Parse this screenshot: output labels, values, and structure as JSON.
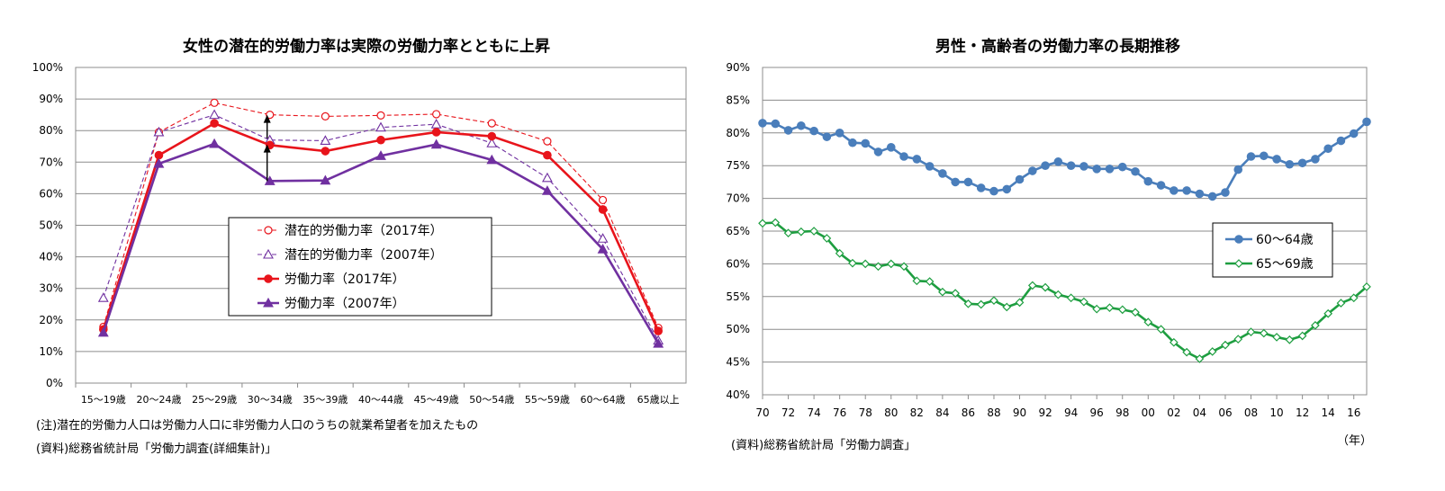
{
  "chart_data": [
    {
      "type": "line",
      "title": "女性の潜在的労働力率は実際の労働力率とともに上昇",
      "categories": [
        "15〜19歳",
        "20〜24歳",
        "25〜29歳",
        "30〜34歳",
        "35〜39歳",
        "40〜44歳",
        "45〜49歳",
        "50〜54歳",
        "55〜59歳",
        "60〜64歳",
        "65歳以上"
      ],
      "y_ticks": [
        "0%",
        "10%",
        "20%",
        "30%",
        "40%",
        "50%",
        "60%",
        "70%",
        "80%",
        "90%",
        "100%"
      ],
      "ylim": [
        0,
        100
      ],
      "grid": true,
      "legend_position": "center",
      "series": [
        {
          "name": "潜在的労働力率（2017年）",
          "color": "#e8141b",
          "style": "dashed-circle",
          "values": [
            17.8,
            79.5,
            88.8,
            85.0,
            84.5,
            84.8,
            85.2,
            82.3,
            76.6,
            58.0,
            17.5
          ]
        },
        {
          "name": "潜在的労働力率（2007年）",
          "color": "#7030a0",
          "style": "dashed-triangle",
          "values": [
            27.0,
            79.5,
            85.0,
            77.0,
            76.8,
            81.0,
            82.0,
            76.0,
            65.0,
            45.8,
            13.5
          ]
        },
        {
          "name": "労働力率（2017年）",
          "color": "#e8141b",
          "style": "solid-circle",
          "values": [
            17.0,
            72.2,
            82.3,
            75.4,
            73.5,
            77.0,
            79.5,
            78.2,
            72.2,
            55.0,
            16.5
          ]
        },
        {
          "name": "労働力率（2007年）",
          "color": "#7030a0",
          "style": "solid-triangle",
          "values": [
            16.0,
            69.5,
            75.8,
            64.0,
            64.2,
            72.0,
            75.6,
            70.7,
            60.9,
            42.4,
            12.5
          ]
        }
      ],
      "annotations": [
        "(注)潜在的労働力人口は労働力人口に非労働力人口のうちの就業希望者を加えたもの",
        "(資料)総務省統計局「労働力調査(詳細集計)」"
      ]
    },
    {
      "type": "line",
      "title": "男性・高齢者の労働力率の長期推移",
      "x_ticks": [
        "70",
        "72",
        "74",
        "76",
        "78",
        "80",
        "82",
        "84",
        "86",
        "88",
        "90",
        "92",
        "94",
        "96",
        "98",
        "00",
        "02",
        "04",
        "06",
        "08",
        "10",
        "12",
        "14",
        "16"
      ],
      "x_unit": "（年）",
      "y_ticks": [
        "40%",
        "45%",
        "50%",
        "55%",
        "60%",
        "65%",
        "70%",
        "75%",
        "80%",
        "85%",
        "90%"
      ],
      "ylim": [
        40,
        90
      ],
      "grid": true,
      "legend_position": "right",
      "years": [
        1970,
        1971,
        1972,
        1973,
        1974,
        1975,
        1976,
        1977,
        1978,
        1979,
        1980,
        1981,
        1982,
        1983,
        1984,
        1985,
        1986,
        1987,
        1988,
        1989,
        1990,
        1991,
        1992,
        1993,
        1994,
        1995,
        1996,
        1997,
        1998,
        1999,
        2000,
        2001,
        2002,
        2003,
        2004,
        2005,
        2006,
        2007,
        2008,
        2009,
        2010,
        2011,
        2012,
        2013,
        2014,
        2015,
        2016,
        2017
      ],
      "series": [
        {
          "name": "60〜64歳",
          "color": "#4a7ebb",
          "style": "solid-filled-circle",
          "values": [
            81.5,
            81.4,
            80.4,
            81.1,
            80.3,
            79.4,
            80.0,
            78.5,
            78.4,
            77.1,
            77.8,
            76.4,
            76.0,
            74.9,
            73.8,
            72.5,
            72.5,
            71.6,
            71.1,
            71.4,
            72.9,
            74.2,
            75.0,
            75.6,
            75.0,
            74.9,
            74.5,
            74.5,
            74.8,
            74.1,
            72.6,
            72.0,
            71.2,
            71.2,
            70.7,
            70.3,
            70.9,
            74.4,
            76.4,
            76.5,
            76.0,
            75.2,
            75.4,
            76.0,
            77.6,
            78.8,
            79.9,
            81.7
          ]
        },
        {
          "name": "65〜69歳",
          "color": "#1e9e40",
          "style": "solid-hollow-diamond",
          "values": [
            66.2,
            66.3,
            64.7,
            64.9,
            65.0,
            63.9,
            61.6,
            60.1,
            60.0,
            59.6,
            60.0,
            59.6,
            57.4,
            57.3,
            55.7,
            55.5,
            53.9,
            53.8,
            54.4,
            53.4,
            54.1,
            56.7,
            56.4,
            55.3,
            54.8,
            54.2,
            53.1,
            53.3,
            53.0,
            52.6,
            51.1,
            50.0,
            48.0,
            46.5,
            45.5,
            46.6,
            47.6,
            48.5,
            49.6,
            49.4,
            48.8,
            48.4,
            49.0,
            50.6,
            52.4,
            54.0,
            54.8,
            56.5
          ]
        }
      ],
      "annotations": [
        "(資料)総務省統計局「労働力調査」"
      ]
    }
  ]
}
